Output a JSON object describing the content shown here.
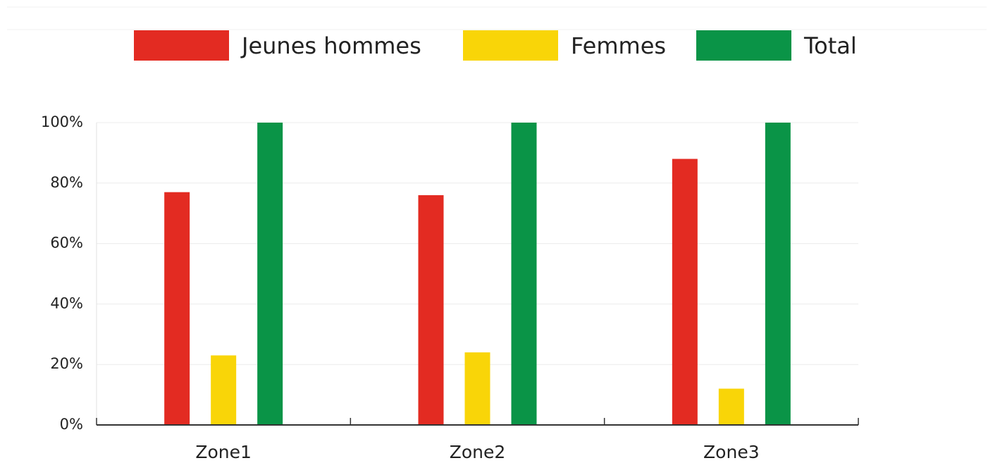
{
  "chart_data": {
    "type": "bar",
    "categories": [
      "Zone1",
      "Zone2",
      "Zone3"
    ],
    "series": [
      {
        "name": "Jeunes hommes",
        "color": "#e32b22",
        "values": [
          77,
          76,
          88
        ]
      },
      {
        "name": "Femmes",
        "color": "#f9d508",
        "values": [
          23,
          24,
          12
        ]
      },
      {
        "name": "Total",
        "color": "#0a9447",
        "values": [
          100,
          100,
          100
        ]
      }
    ],
    "ylim": [
      0,
      100
    ],
    "yticks": [
      {
        "value": 0,
        "label": "0%"
      },
      {
        "value": 20,
        "label": "20%"
      },
      {
        "value": 40,
        "label": "40%"
      },
      {
        "value": 60,
        "label": "60%"
      },
      {
        "value": 80,
        "label": "80%"
      },
      {
        "value": 100,
        "label": "100%"
      }
    ],
    "grid": true,
    "legend": "top"
  }
}
